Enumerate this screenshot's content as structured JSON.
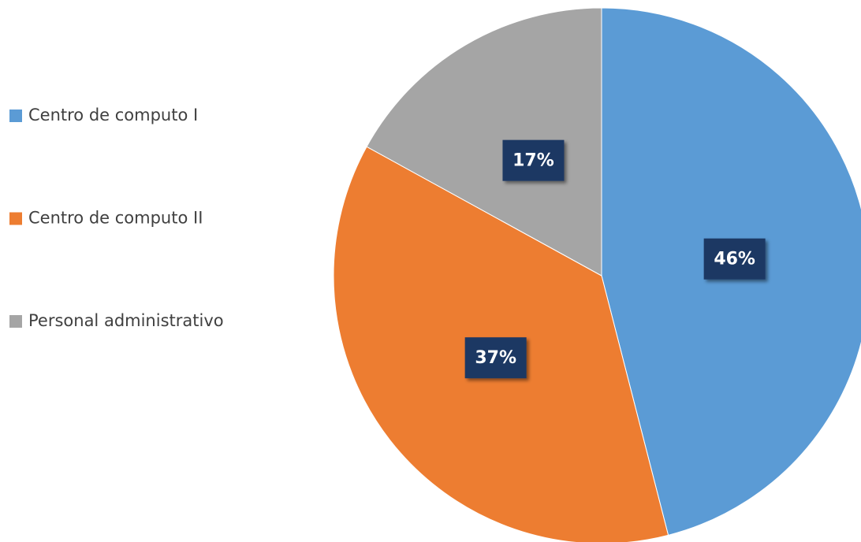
{
  "chart_data": {
    "type": "pie",
    "categories": [
      "Centro de computo I",
      "Centro de computo II",
      "Personal administrativo"
    ],
    "values": [
      46,
      37,
      17
    ],
    "value_labels": [
      "46%",
      "37%",
      "17%"
    ],
    "colors": [
      "#5b9bd5",
      "#ed7d31",
      "#a5a5a5"
    ],
    "legend": "left"
  }
}
